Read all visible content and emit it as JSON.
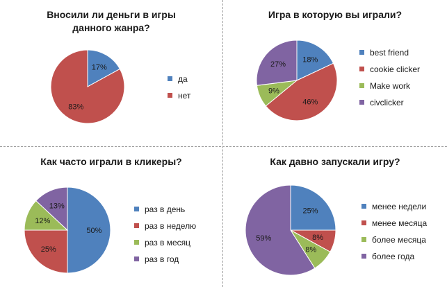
{
  "chart_data": [
    {
      "type": "pie",
      "title": "Вносили ли деньги в игры\nданного жанра?",
      "categories": [
        "да",
        "нет"
      ],
      "values": [
        17,
        83
      ],
      "labels": [
        "17%",
        "83%"
      ],
      "colors": [
        "#4f81bd",
        "#c0504d"
      ],
      "legend": "right"
    },
    {
      "type": "pie",
      "title": "Игра в которую вы играли?",
      "categories": [
        "best friend",
        "cookie clicker",
        "Make work",
        "civclicker"
      ],
      "values": [
        18,
        46,
        9,
        27
      ],
      "labels": [
        "18%",
        "46%",
        "9%",
        "27%"
      ],
      "colors": [
        "#4f81bd",
        "#c0504d",
        "#9bbb59",
        "#8064a2"
      ],
      "legend": "right"
    },
    {
      "type": "pie",
      "title": "Как часто играли в кликеры?",
      "categories": [
        "раз в день",
        "раз в неделю",
        "раз в месяц",
        "раз в год"
      ],
      "values": [
        50,
        25,
        12,
        13
      ],
      "labels": [
        "50%",
        "25%",
        "12%",
        "13%"
      ],
      "colors": [
        "#4f81bd",
        "#c0504d",
        "#9bbb59",
        "#8064a2"
      ],
      "legend": "right"
    },
    {
      "type": "pie",
      "title": "Как давно запускали игру?",
      "categories": [
        "менее недели",
        "менее месяца",
        "более месяца",
        "более года"
      ],
      "values": [
        25,
        8,
        8,
        59
      ],
      "labels": [
        "25%",
        "8%",
        "8%",
        "59%"
      ],
      "colors": [
        "#4f81bd",
        "#c0504d",
        "#9bbb59",
        "#8064a2"
      ],
      "legend": "right"
    }
  ]
}
